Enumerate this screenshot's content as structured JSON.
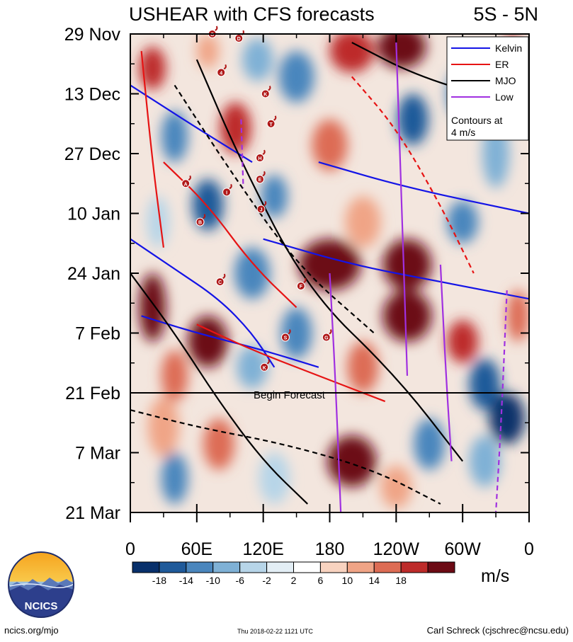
{
  "chart_data": {
    "type": "heatmap",
    "title": "USHEAR with CFS forecasts",
    "region": "5S - 5N",
    "xlabel": "",
    "ylabel": "",
    "x_ticks": [
      "0",
      "60E",
      "120E",
      "180",
      "120W",
      "60W",
      "0"
    ],
    "x_tick_lons": [
      0,
      60,
      120,
      180,
      240,
      300,
      360
    ],
    "xlim": [
      0,
      360
    ],
    "y_ticks": [
      "29 Nov",
      "13 Dec",
      "27 Dec",
      "10 Jan",
      "24 Jan",
      "7 Feb",
      "21 Feb",
      "7 Mar",
      "21 Mar"
    ],
    "y_tick_days": [
      0,
      14,
      28,
      42,
      56,
      70,
      84,
      98,
      112
    ],
    "ylim_days": [
      0,
      112
    ],
    "forecast_start_day": 84,
    "forecast_label": "Begin Forecast",
    "colorbar": {
      "unit": "m/s",
      "labels": [
        "-18",
        "-14",
        "-10",
        "-6",
        "-2",
        "2",
        "6",
        "10",
        "14",
        "18"
      ],
      "levels": [
        -18,
        -14,
        -10,
        -6,
        -2,
        2,
        6,
        10,
        14,
        18
      ],
      "colors": [
        "#08306b",
        "#1f5a9a",
        "#4a86bd",
        "#7fb1d6",
        "#b7d5e8",
        "#e3eef5",
        "#ffffff",
        "#f8d3c0",
        "#f0a486",
        "#dd6c54",
        "#bd2b2a",
        "#6c0a14"
      ]
    },
    "legend": {
      "position": "top-right",
      "entries": [
        {
          "name": "Kelvin",
          "color": "#1414e6"
        },
        {
          "name": "ER",
          "color": "#e61414"
        },
        {
          "name": "MJO",
          "color": "#000000"
        },
        {
          "name": "Low",
          "color": "#a030e0"
        }
      ],
      "note_line1": "Contours at",
      "note_line2": "4 m/s"
    },
    "cyclones": [
      {
        "label": "D",
        "lon": 98,
        "day": 1
      },
      {
        "label": "O",
        "lon": 74,
        "day": 0
      },
      {
        "label": "4",
        "lon": 82,
        "day": 9
      },
      {
        "label": "K",
        "lon": 122,
        "day": 14
      },
      {
        "label": "T",
        "lon": 127,
        "day": 21
      },
      {
        "label": "H",
        "lon": 117,
        "day": 29
      },
      {
        "label": "E",
        "lon": 117,
        "day": 34
      },
      {
        "label": "A",
        "lon": 50,
        "day": 35
      },
      {
        "label": "I",
        "lon": 87,
        "day": 37
      },
      {
        "label": "J",
        "lon": 118,
        "day": 41
      },
      {
        "label": "B",
        "lon": 63,
        "day": 44
      },
      {
        "label": "C",
        "lon": 81,
        "day": 58
      },
      {
        "label": "F",
        "lon": 154,
        "day": 59
      },
      {
        "label": "S",
        "lon": 140,
        "day": 71
      },
      {
        "label": "G",
        "lon": 177,
        "day": 71
      },
      {
        "label": "K",
        "lon": 121,
        "day": 78
      }
    ]
  },
  "footer": {
    "logo_text": "NCICS",
    "url": "ncics.org/mjo",
    "timestamp": "Thu 2018-02-22 1121 UTC",
    "author": "Carl Schreck (cjschrec@ncsu.edu)"
  }
}
